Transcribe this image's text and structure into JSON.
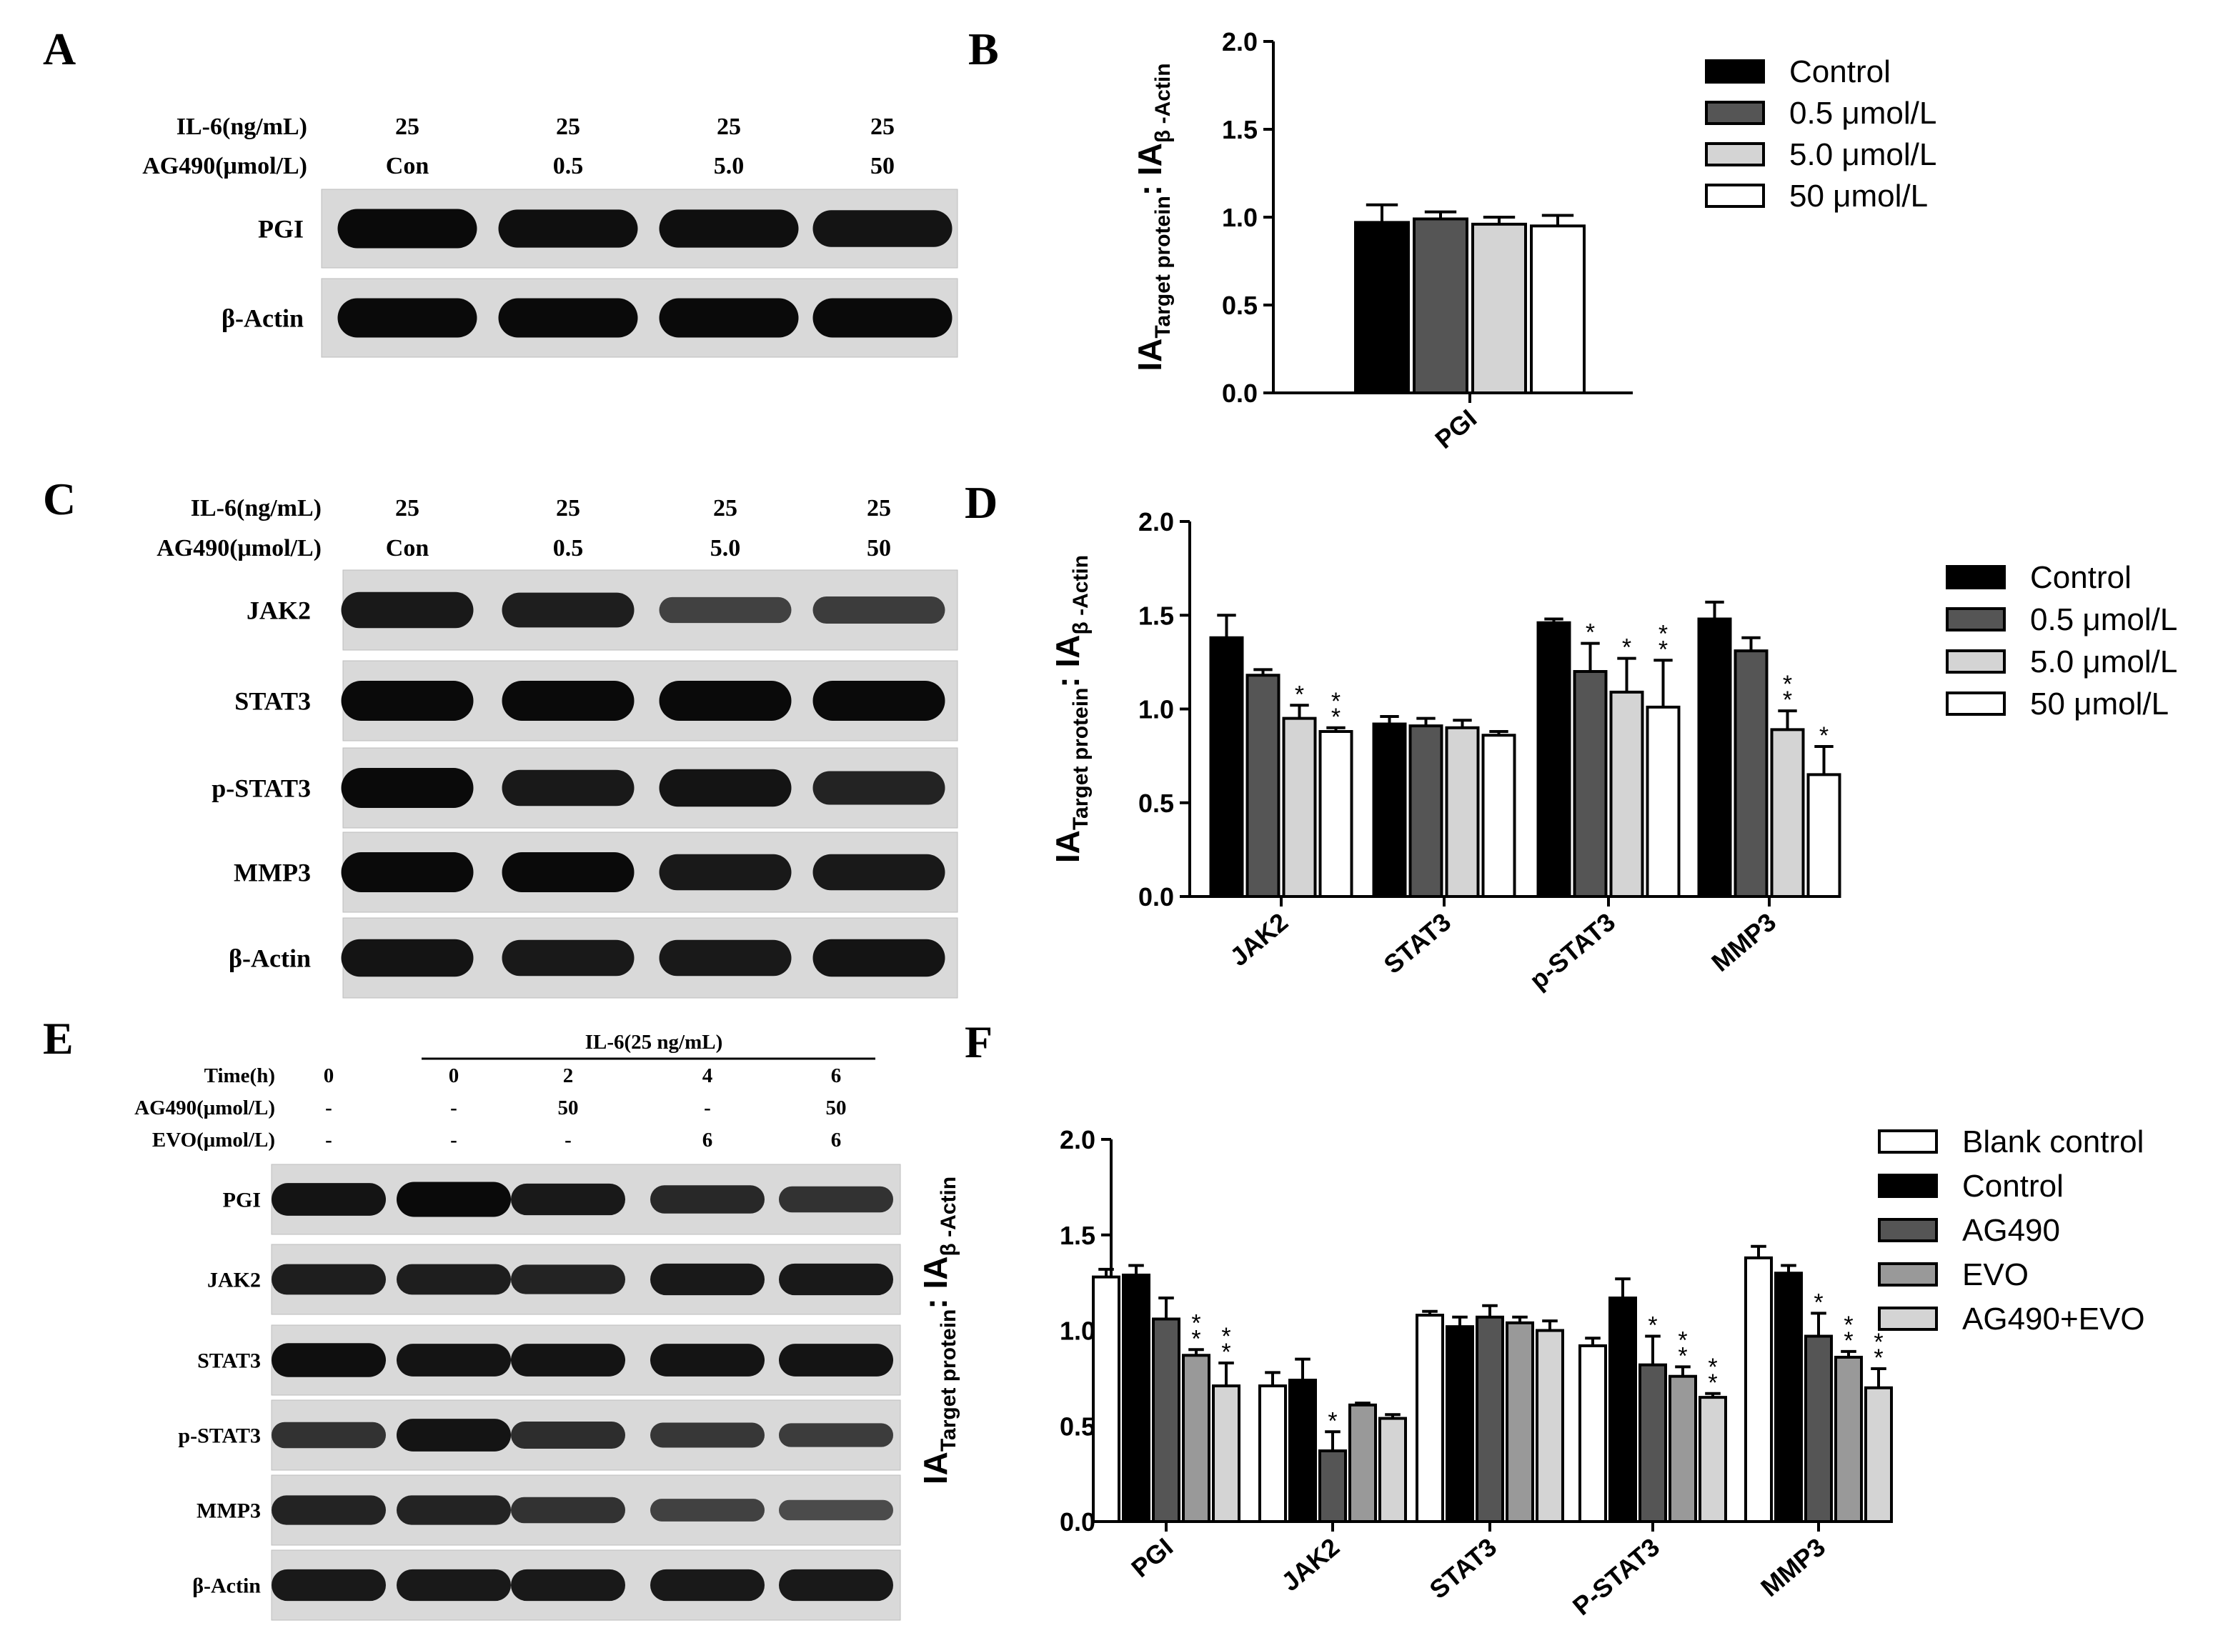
{
  "panel_letters": {
    "A": "A",
    "B": "B",
    "C": "C",
    "D": "D",
    "E": "E",
    "F": "F"
  },
  "blot_a": {
    "cond_labels": [
      "IL-6(ng/mL)",
      "AG490(μmol/L)"
    ],
    "il6": [
      "25",
      "25",
      "25",
      "25"
    ],
    "ag490": [
      "Con",
      "0.5",
      "5.0",
      "50"
    ],
    "rows": [
      {
        "label": "PGI",
        "bands": [
          1.0,
          0.95,
          0.95,
          0.9
        ]
      },
      {
        "label": "β-Actin",
        "bands": [
          1.0,
          1.0,
          1.0,
          1.0
        ]
      }
    ]
  },
  "blot_c": {
    "cond_labels": [
      "IL-6(ng/mL)",
      "AG490(μmol/L)"
    ],
    "il6": [
      "25",
      "25",
      "25",
      "25"
    ],
    "ag490": [
      "Con",
      "0.5",
      "5.0",
      "50"
    ],
    "rows": [
      {
        "label": "JAK2",
        "bands": [
          0.85,
          0.8,
          0.45,
          0.5
        ]
      },
      {
        "label": "STAT3",
        "bands": [
          1.0,
          1.0,
          1.0,
          1.0
        ]
      },
      {
        "label": "p-STAT3",
        "bands": [
          1.0,
          0.85,
          0.9,
          0.75
        ]
      },
      {
        "label": "MMP3",
        "bands": [
          1.0,
          1.0,
          0.85,
          0.85
        ]
      },
      {
        "label": "β-Actin",
        "bands": [
          0.9,
          0.85,
          0.85,
          0.9
        ]
      }
    ]
  },
  "blot_e": {
    "header": "IL-6(25 ng/mL)",
    "cond_labels": [
      "Time(h)",
      "AG490(μmol/L)",
      "EVO(μmol/L)"
    ],
    "time": [
      "0",
      "0",
      "2",
      "4",
      "6"
    ],
    "ag490": [
      "-",
      "-",
      "50",
      "-",
      "50"
    ],
    "evo": [
      "-",
      "-",
      "-",
      "6",
      "6"
    ],
    "rows": [
      {
        "label": "PGI",
        "bands": [
          0.9,
          1.0,
          0.85,
          0.7,
          0.6
        ]
      },
      {
        "label": "JAK2",
        "bands": [
          0.8,
          0.8,
          0.75,
          0.85,
          0.85
        ]
      },
      {
        "label": "STAT3",
        "bands": [
          0.95,
          0.9,
          0.9,
          0.9,
          0.9
        ]
      },
      {
        "label": "p-STAT3",
        "bands": [
          0.6,
          0.9,
          0.65,
          0.55,
          0.5
        ]
      },
      {
        "label": "MMP3",
        "bands": [
          0.75,
          0.75,
          0.6,
          0.45,
          0.35
        ]
      },
      {
        "label": "β-Actin",
        "bands": [
          0.85,
          0.85,
          0.85,
          0.85,
          0.85
        ]
      }
    ]
  },
  "chart_data": [
    {
      "type": "bar",
      "panel": "B",
      "title": "",
      "ylabel_main": "IA",
      "ylabel_sub1": "Target protein",
      "ylabel_mid": ": IA",
      "ylabel_sub2": "β -Actin",
      "categories": [
        "PGI"
      ],
      "series": [
        {
          "name": "Control",
          "values": [
            0.97
          ],
          "errors": [
            0.1
          ],
          "stars": [
            ""
          ]
        },
        {
          "name": "0.5 μmol/L",
          "values": [
            0.99
          ],
          "errors": [
            0.04
          ],
          "stars": [
            ""
          ]
        },
        {
          "name": "5.0 μmol/L",
          "values": [
            0.96
          ],
          "errors": [
            0.04
          ],
          "stars": [
            ""
          ]
        },
        {
          "name": "50 μmol/L",
          "values": [
            0.95
          ],
          "errors": [
            0.06
          ],
          "stars": [
            ""
          ]
        }
      ],
      "ylim": [
        0,
        2.0
      ],
      "yticks": [
        "0.0",
        "0.5",
        "1.0",
        "1.5",
        "2.0"
      ],
      "legend_position": "top-right"
    },
    {
      "type": "bar",
      "panel": "D",
      "title": "",
      "ylabel_main": "IA",
      "ylabel_sub1": "Target protein",
      "ylabel_mid": ": IA",
      "ylabel_sub2": "β -Actin",
      "categories": [
        "JAK2",
        "STAT3",
        "p-STAT3",
        "MMP3"
      ],
      "series": [
        {
          "name": "Control",
          "values": [
            1.38,
            0.92,
            1.46,
            1.48
          ],
          "errors": [
            0.12,
            0.04,
            0.02,
            0.09
          ],
          "stars": [
            "",
            "",
            "",
            ""
          ]
        },
        {
          "name": "0.5 μmol/L",
          "values": [
            1.18,
            0.91,
            1.2,
            1.31
          ],
          "errors": [
            0.03,
            0.04,
            0.15,
            0.07
          ],
          "stars": [
            "",
            "",
            "*",
            ""
          ]
        },
        {
          "name": "5.0 μmol/L",
          "values": [
            0.95,
            0.9,
            1.09,
            0.89
          ],
          "errors": [
            0.07,
            0.04,
            0.18,
            0.1
          ],
          "stars": [
            "*",
            "",
            "*",
            "**"
          ]
        },
        {
          "name": "50 μmol/L",
          "values": [
            0.88,
            0.86,
            1.01,
            0.65
          ],
          "errors": [
            0.02,
            0.02,
            0.25,
            0.15
          ],
          "stars": [
            "**",
            "",
            "**",
            "*"
          ]
        }
      ],
      "ylim": [
        0,
        2.0
      ],
      "yticks": [
        "0.0",
        "0.5",
        "1.0",
        "1.5",
        "2.0"
      ],
      "legend_position": "right"
    },
    {
      "type": "bar",
      "panel": "F",
      "title": "",
      "ylabel_main": "IA",
      "ylabel_sub1": "Target protein",
      "ylabel_mid": ": IA",
      "ylabel_sub2": "β -Actin",
      "categories": [
        "PGI",
        "JAK2",
        "STAT3",
        "P-STAT3",
        "MMP3"
      ],
      "series": [
        {
          "name": "Blank control",
          "values": [
            1.28,
            0.71,
            1.08,
            0.92,
            1.38
          ],
          "errors": [
            0.04,
            0.07,
            0.02,
            0.04,
            0.06
          ],
          "stars": [
            "",
            "",
            "",
            "",
            ""
          ]
        },
        {
          "name": "Control",
          "values": [
            1.29,
            0.74,
            1.02,
            1.17,
            1.3
          ],
          "errors": [
            0.05,
            0.11,
            0.05,
            0.1,
            0.04
          ],
          "stars": [
            "",
            "",
            "",
            "",
            ""
          ]
        },
        {
          "name": "AG490",
          "values": [
            1.06,
            0.37,
            1.07,
            0.82,
            0.97
          ],
          "errors": [
            0.11,
            0.1,
            0.06,
            0.15,
            0.12
          ],
          "stars": [
            "",
            "*",
            "",
            "*",
            "*"
          ]
        },
        {
          "name": "EVO",
          "values": [
            0.87,
            0.61,
            1.04,
            0.76,
            0.86
          ],
          "errors": [
            0.03,
            0.01,
            0.03,
            0.05,
            0.03
          ],
          "stars": [
            "**",
            "",
            "",
            "**",
            "**"
          ]
        },
        {
          "name": "AG490+EVO",
          "values": [
            0.71,
            0.54,
            1.0,
            0.65,
            0.7
          ],
          "errors": [
            0.12,
            0.02,
            0.05,
            0.02,
            0.1
          ],
          "stars": [
            "**",
            "",
            "",
            "**",
            "**"
          ]
        }
      ],
      "ylim": [
        0,
        2.0
      ],
      "yticks": [
        "0.0",
        "0.5",
        "1.0",
        "1.5",
        "2.0"
      ],
      "legend_position": "right"
    }
  ],
  "colors": {
    "Control": "#000000",
    "0.5 μmol/L": "#555555",
    "5.0 μmol/L": "#d4d4d4",
    "50 μmol/L": "#ffffff",
    "Blank control": "#ffffff",
    "AG490": "#555555",
    "EVO": "#999999",
    "AG490+EVO": "#d4d4d4"
  }
}
